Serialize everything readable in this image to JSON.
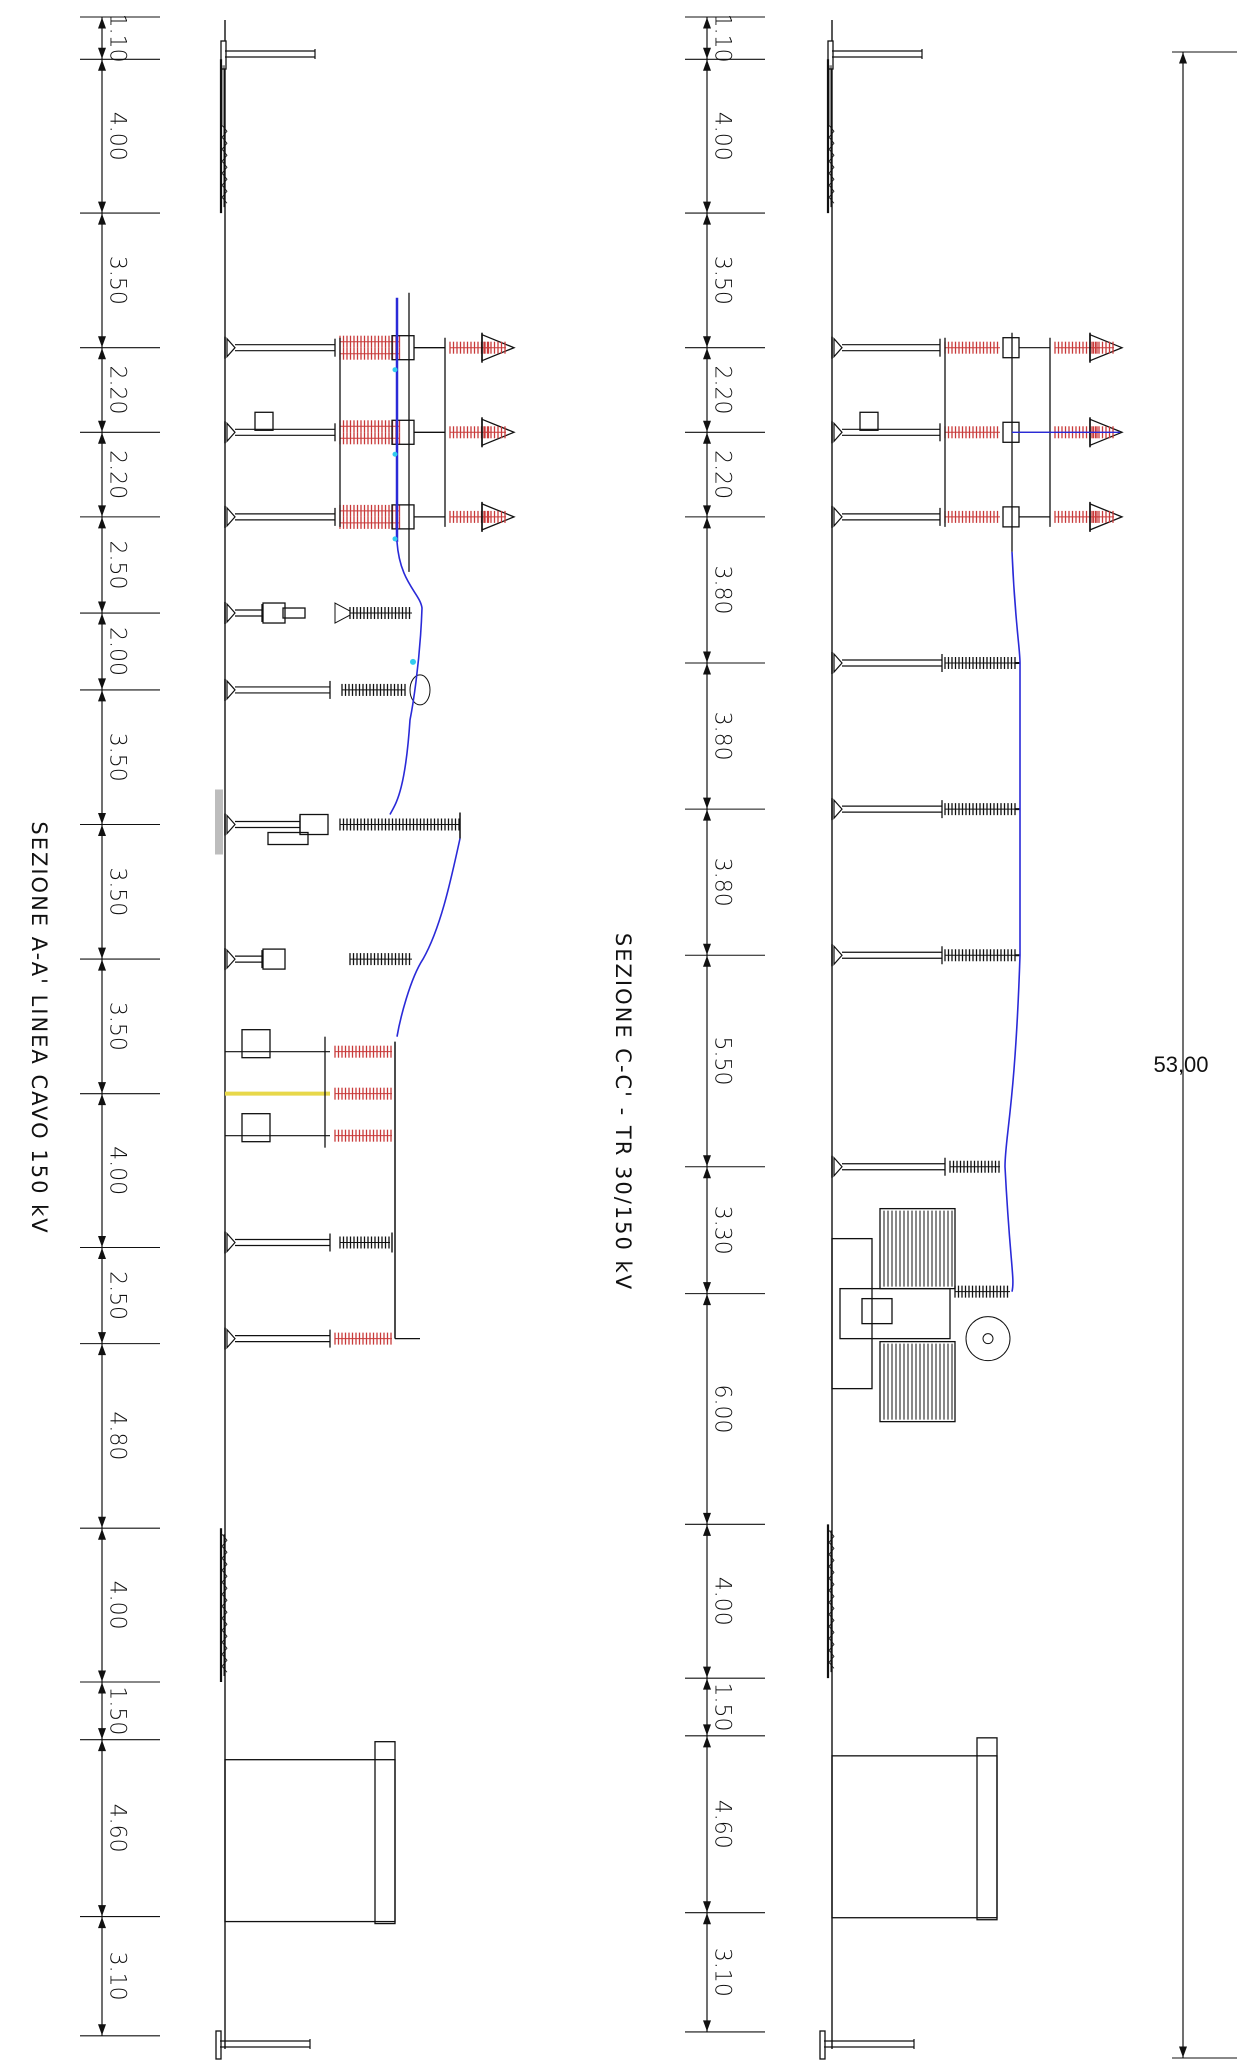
{
  "drawing": {
    "colors": {
      "line": "#111111",
      "conductor": "#2a2ad8",
      "insulator": "#c83a3a",
      "accent_cyan": "#33ccee",
      "accent_yellow": "#e8d84a",
      "ground_fill": "#bdbdbd"
    },
    "total_dimension": "53,00",
    "sections": [
      {
        "id": "a",
        "title": "SEZIONE A-A' LINEA CAVO 150 kV",
        "dimensions": [
          "1.10",
          "4.00",
          "3.50",
          "2.20",
          "2.20",
          "2.50",
          "2.00",
          "3.50",
          "3.50",
          "3.50",
          "4.00",
          "2.50",
          "4.80",
          "4.00",
          "1.50",
          "4.60",
          "3.10"
        ]
      },
      {
        "id": "c",
        "title": "SEZIONE C-C' - TR 30/150 kV",
        "dimensions": [
          "1.10",
          "4.00",
          "3.50",
          "2.20",
          "2.20",
          "3.80",
          "3.80",
          "3.80",
          "5.50",
          "3.30",
          "6.00",
          "4.00",
          "1.50",
          "4.60",
          "3.10"
        ]
      }
    ]
  }
}
